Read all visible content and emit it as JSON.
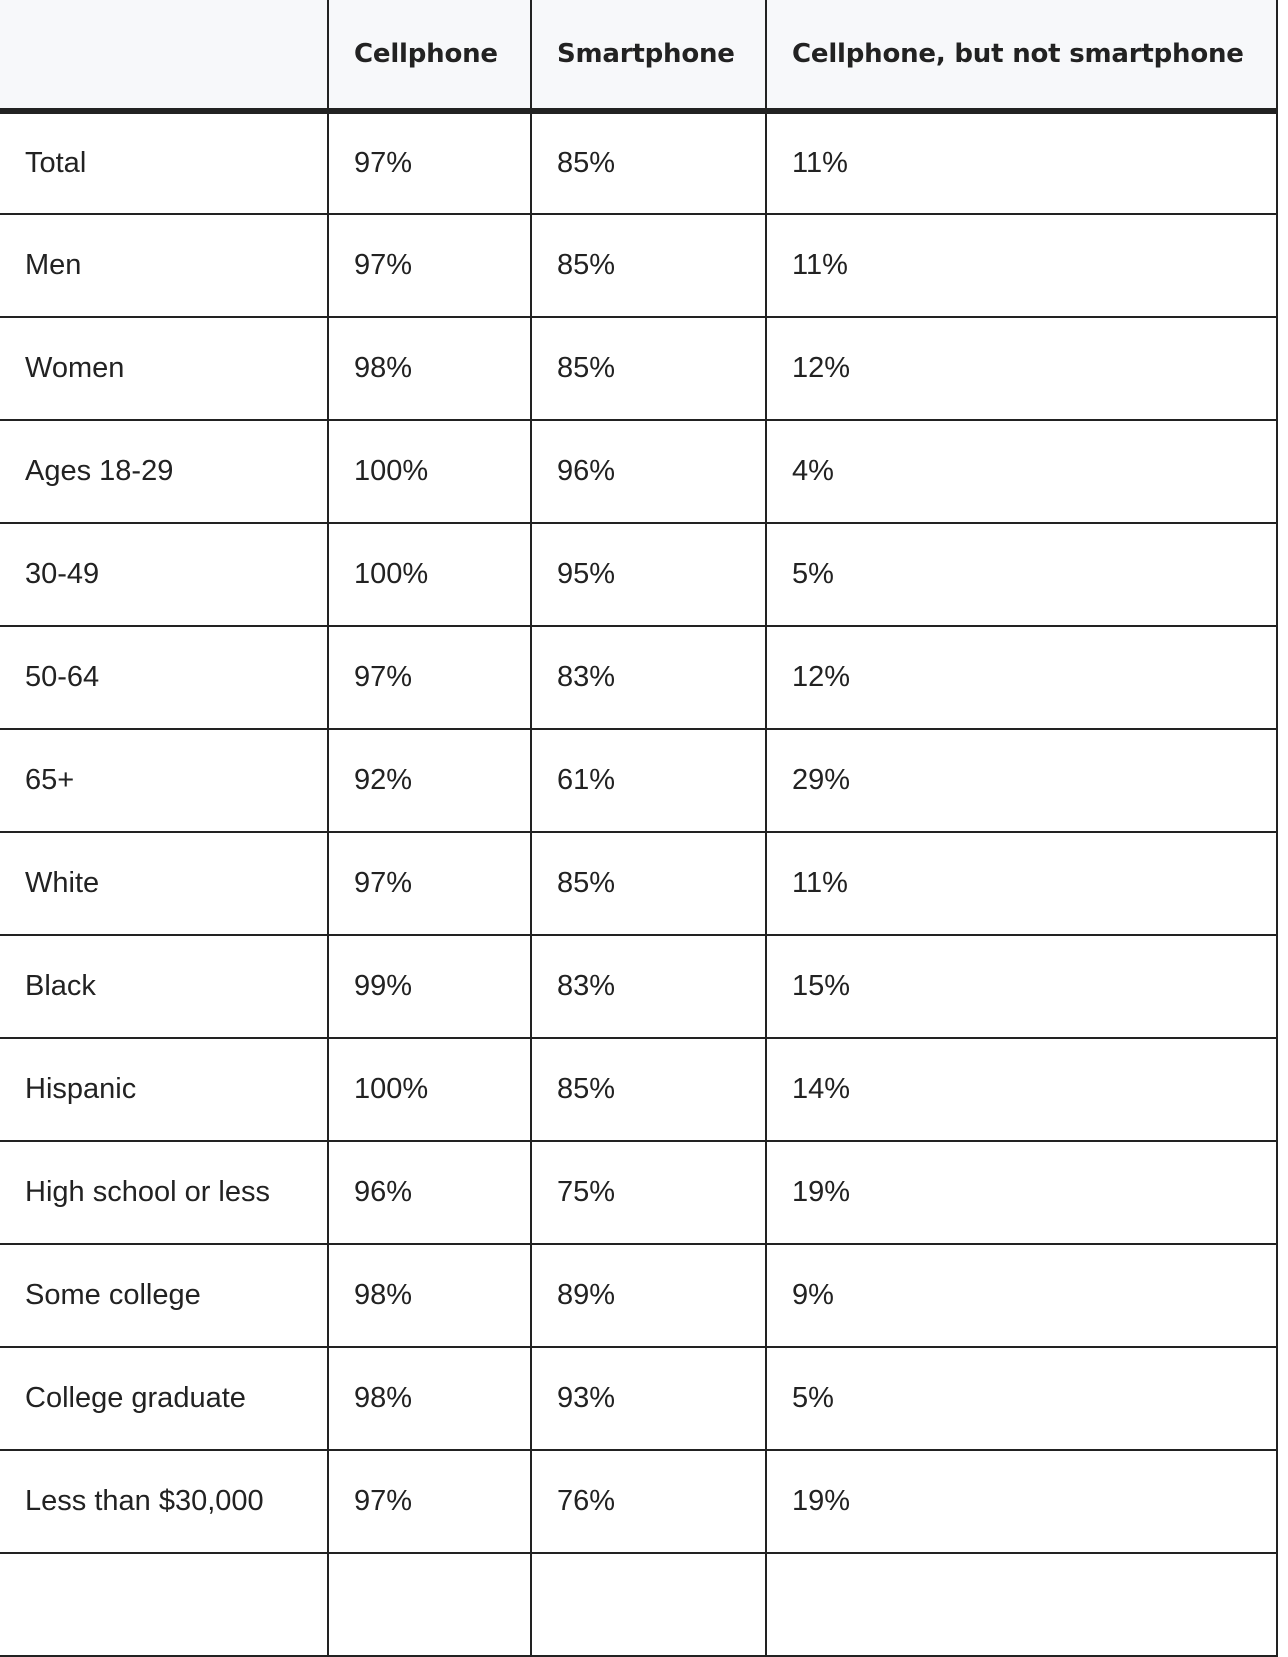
{
  "table": {
    "columns": [
      "",
      "Cellphone",
      "Smartphone",
      "Cellphone, but not smartphone"
    ],
    "rows": [
      [
        "Total",
        "97%",
        "85%",
        "11%"
      ],
      [
        "Men",
        "97%",
        "85%",
        "11%"
      ],
      [
        "Women",
        "98%",
        "85%",
        "12%"
      ],
      [
        "Ages 18-29",
        "100%",
        "96%",
        "4%"
      ],
      [
        "30-49",
        "100%",
        "95%",
        "5%"
      ],
      [
        "50-64",
        "97%",
        "83%",
        "12%"
      ],
      [
        "65+",
        "92%",
        "61%",
        "29%"
      ],
      [
        "White",
        "97%",
        "85%",
        "11%"
      ],
      [
        "Black",
        "99%",
        "83%",
        "15%"
      ],
      [
        "Hispanic",
        "100%",
        "85%",
        "14%"
      ],
      [
        "High school or less",
        "96%",
        "75%",
        "19%"
      ],
      [
        "Some college",
        "98%",
        "89%",
        "9%"
      ],
      [
        "College graduate",
        "98%",
        "93%",
        "5%"
      ],
      [
        "Less than $30,000",
        "97%",
        "76%",
        "19%"
      ],
      [
        "",
        "",
        "",
        ""
      ]
    ]
  }
}
